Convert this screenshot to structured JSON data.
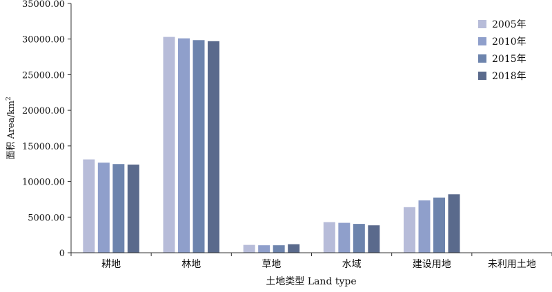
{
  "chart_data": {
    "type": "bar",
    "categories": [
      "耕地",
      "林地",
      "草地",
      "水域",
      "建设用地",
      "未利用土地"
    ],
    "series": [
      {
        "name": "2005年",
        "values": [
          13100,
          30300,
          1100,
          4300,
          6400,
          0
        ],
        "color": "#b7bcd9"
      },
      {
        "name": "2010年",
        "values": [
          12650,
          30100,
          1050,
          4200,
          7350,
          0
        ],
        "color": "#8f9fcb"
      },
      {
        "name": "2015年",
        "values": [
          12450,
          29850,
          1050,
          4050,
          7750,
          0
        ],
        "color": "#6d84ad"
      },
      {
        "name": "2018年",
        "values": [
          12380,
          29700,
          1200,
          3850,
          8200,
          0
        ],
        "color": "#5a6a8c"
      }
    ],
    "ylim": [
      0,
      35000
    ],
    "ytick_values": [
      0,
      5000,
      10000,
      15000,
      20000,
      25000,
      30000,
      35000
    ],
    "ytick_labels": [
      "0",
      "5000.00",
      "10000.00",
      "15000.00",
      "20000.00",
      "25000.00",
      "30000.00",
      "35000.00"
    ],
    "ylabel": "面积 Area/km",
    "ylabel_sup": "2",
    "xlabel": "土地类型  Land type",
    "legend_position": "top-right",
    "grid": false
  }
}
